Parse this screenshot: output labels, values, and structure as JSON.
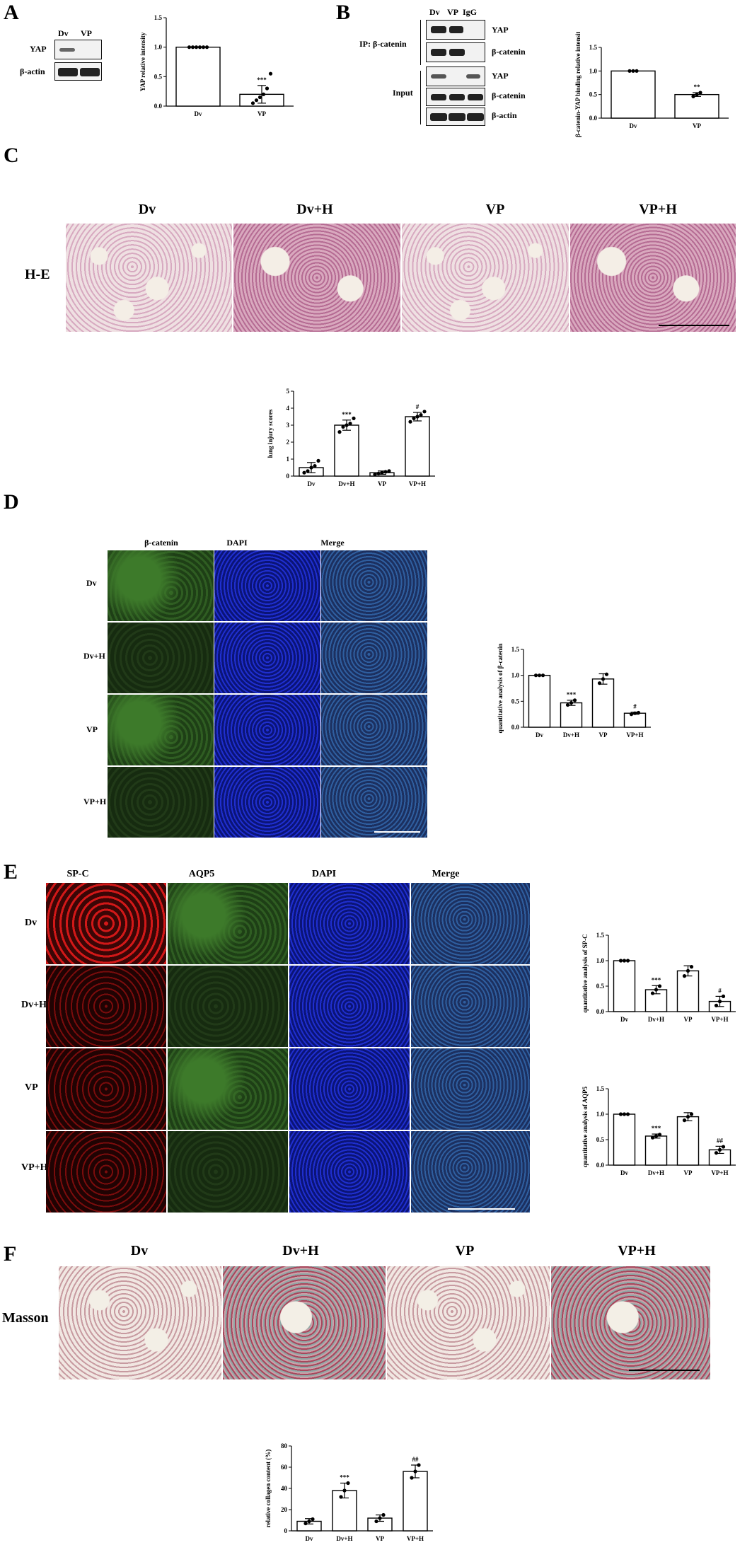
{
  "panels": {
    "A": {
      "letter": "A",
      "lanes": [
        "Dv",
        "VP"
      ],
      "rows": [
        "YAP",
        "β-actin"
      ],
      "chart_data": {
        "type": "bar",
        "categories": [
          "Dv",
          "VP"
        ],
        "values": [
          1.0,
          0.2
        ],
        "errors": [
          0.0,
          0.15
        ],
        "points": [
          [
            1,
            1,
            1,
            1,
            1,
            1
          ],
          [
            0.05,
            0.1,
            0.15,
            0.2,
            0.3,
            0.55
          ]
        ],
        "ylabel": "YAP relative intensity",
        "ylim": [
          0,
          1.5
        ],
        "yticks": [
          "0.0",
          "0.5",
          "1.0",
          "1.5"
        ],
        "annotations": [
          "",
          "***"
        ]
      }
    },
    "B": {
      "letter": "B",
      "lanes": [
        "Dv",
        "VP",
        "IgG"
      ],
      "ip_label": "IP: β-catenin",
      "input_label": "Input",
      "rows": [
        "YAP",
        "β-catenin",
        "YAP",
        "β-catenin",
        "β-actin"
      ],
      "chart_data": {
        "type": "bar",
        "categories": [
          "Dv",
          "VP"
        ],
        "values": [
          1.0,
          0.5
        ],
        "errors": [
          0.0,
          0.04
        ],
        "points": [
          [
            1,
            1,
            1
          ],
          [
            0.46,
            0.5,
            0.54
          ]
        ],
        "ylabel": "β-catenin-YAP binding relative intensity",
        "ylim": [
          0,
          1.5
        ],
        "yticks": [
          "0.0",
          "0.5",
          "1.0",
          "1.5"
        ],
        "annotations": [
          "",
          "**"
        ]
      }
    },
    "C": {
      "letter": "C",
      "groups": [
        "Dv",
        "Dv+H",
        "VP",
        "VP+H"
      ],
      "row_label": "H-E",
      "chart_data": {
        "type": "bar",
        "categories": [
          "Dv",
          "Dv+H",
          "VP",
          "VP+H"
        ],
        "values": [
          0.5,
          3.0,
          0.2,
          3.5
        ],
        "errors": [
          0.3,
          0.3,
          0.1,
          0.25
        ],
        "points": [
          [
            0.2,
            0.3,
            0.5,
            0.6,
            0.9
          ],
          [
            2.6,
            2.9,
            3.0,
            3.1,
            3.4
          ],
          [
            0.1,
            0.15,
            0.2,
            0.25,
            0.3
          ],
          [
            3.2,
            3.4,
            3.5,
            3.6,
            3.8
          ]
        ],
        "ylabel": "lung injury scores",
        "ylim": [
          0,
          5
        ],
        "yticks": [
          "0",
          "1",
          "2",
          "3",
          "4",
          "5"
        ],
        "annotations": [
          "",
          "***",
          "",
          "#"
        ]
      }
    },
    "D": {
      "letter": "D",
      "columns": [
        "β-catenin",
        "DAPI",
        "Merge"
      ],
      "rows": [
        "Dv",
        "Dv+H",
        "VP",
        "VP+H"
      ],
      "chart_data": {
        "type": "bar",
        "categories": [
          "Dv",
          "Dv+H",
          "VP",
          "VP+H"
        ],
        "values": [
          1.0,
          0.47,
          0.93,
          0.27
        ],
        "errors": [
          0.0,
          0.05,
          0.1,
          0.02
        ],
        "points": [
          [
            1,
            1,
            1
          ],
          [
            0.43,
            0.47,
            0.52
          ],
          [
            0.85,
            0.93,
            1.02
          ],
          [
            0.25,
            0.27,
            0.28
          ]
        ],
        "ylabel": "quantitative analysis of β-catenin",
        "ylim": [
          0,
          1.5
        ],
        "yticks": [
          "0.0",
          "0.5",
          "1.0",
          "1.5"
        ],
        "annotations": [
          "",
          "***",
          "",
          "#"
        ]
      }
    },
    "E": {
      "letter": "E",
      "columns": [
        "SP-C",
        "AQP5",
        "DAPI",
        "Merge"
      ],
      "rows": [
        "Dv",
        "Dv+H",
        "VP",
        "VP+H"
      ],
      "chart_data": [
        {
          "type": "bar",
          "categories": [
            "Dv",
            "Dv+H",
            "VP",
            "VP+H"
          ],
          "values": [
            1.0,
            0.43,
            0.8,
            0.2
          ],
          "errors": [
            0.0,
            0.08,
            0.1,
            0.1
          ],
          "points": [
            [
              1,
              1,
              1
            ],
            [
              0.36,
              0.43,
              0.5
            ],
            [
              0.7,
              0.8,
              0.88
            ],
            [
              0.12,
              0.2,
              0.3
            ]
          ],
          "ylabel": "quantitative analysis of SP-C",
          "ylim": [
            0,
            1.5
          ],
          "yticks": [
            "0.0",
            "0.5",
            "1.0",
            "1.5"
          ],
          "annotations": [
            "",
            "***",
            "",
            "#"
          ]
        },
        {
          "type": "bar",
          "categories": [
            "Dv",
            "Dv+H",
            "VP",
            "VP+H"
          ],
          "values": [
            1.0,
            0.57,
            0.95,
            0.3
          ],
          "errors": [
            0.0,
            0.04,
            0.08,
            0.07
          ],
          "points": [
            [
              1,
              1,
              1
            ],
            [
              0.54,
              0.57,
              0.6
            ],
            [
              0.88,
              0.95,
              1.0
            ],
            [
              0.24,
              0.3,
              0.36
            ]
          ],
          "ylabel": "quantitative analysis of AQP5",
          "ylim": [
            0,
            1.5
          ],
          "yticks": [
            "0.0",
            "0.5",
            "1.0",
            "1.5"
          ],
          "annotations": [
            "",
            "***",
            "",
            "##"
          ]
        }
      ]
    },
    "F": {
      "letter": "F",
      "groups": [
        "Dv",
        "Dv+H",
        "VP",
        "VP+H"
      ],
      "row_label": "Masson",
      "chart_data": {
        "type": "bar",
        "categories": [
          "Dv",
          "Dv+H",
          "VP",
          "VP+H"
        ],
        "values": [
          9,
          38,
          12,
          56
        ],
        "errors": [
          2.5,
          7,
          3,
          6
        ],
        "points": [
          [
            7,
            9,
            11
          ],
          [
            32,
            38,
            45
          ],
          [
            9,
            12,
            15
          ],
          [
            50,
            56,
            62
          ]
        ],
        "ylabel": "relative collagen content (%)",
        "ylim": [
          0,
          80
        ],
        "yticks": [
          "0",
          "20",
          "40",
          "60",
          "80"
        ],
        "annotations": [
          "",
          "***",
          "",
          "##"
        ]
      }
    }
  }
}
